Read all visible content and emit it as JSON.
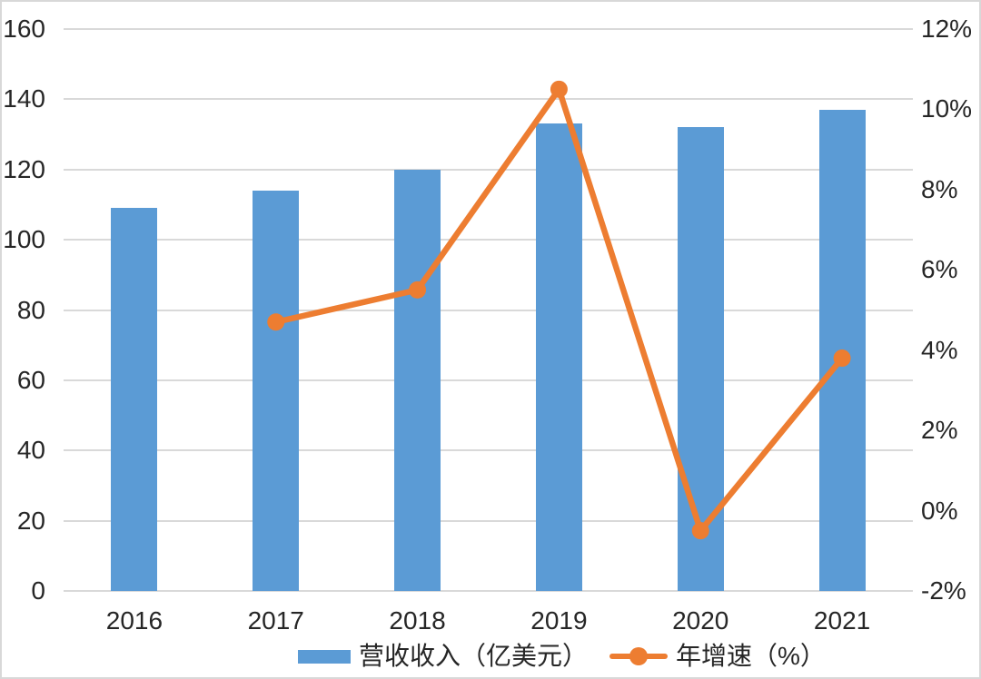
{
  "chart_data": {
    "type": "combo_bar_line",
    "title": "",
    "categories": [
      "2016",
      "2017",
      "2018",
      "2019",
      "2020",
      "2021"
    ],
    "series": [
      {
        "name": "营收收入（亿美元）",
        "type": "bar",
        "axis": "left",
        "color": "#5B9BD5",
        "values": [
          109,
          114,
          120,
          133,
          132,
          137
        ]
      },
      {
        "name": "年增速（%）",
        "type": "line",
        "axis": "right",
        "color": "#ED7D31",
        "values": [
          null,
          4.7,
          5.5,
          10.5,
          -0.5,
          3.8
        ]
      }
    ],
    "left_axis": {
      "min": 0,
      "max": 160,
      "step": 20,
      "labels": [
        "0",
        "20",
        "40",
        "60",
        "80",
        "100",
        "120",
        "140",
        "160"
      ]
    },
    "right_axis": {
      "min": -2,
      "max": 12,
      "step": 2,
      "labels": [
        "-2%",
        "0%",
        "2%",
        "4%",
        "6%",
        "8%",
        "10%",
        "12%"
      ]
    },
    "grid": true,
    "legend_position": "bottom",
    "colors": {
      "grid": "#D9D9D9",
      "text": "#262626",
      "background": "#FFFFFF",
      "border": "#D8D8D8"
    }
  }
}
